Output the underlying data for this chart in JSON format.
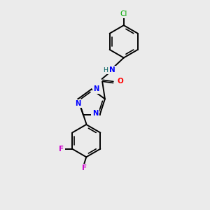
{
  "background_color": "#ebebeb",
  "bond_color": "#000000",
  "figsize": [
    3.0,
    3.0
  ],
  "dpi": 100,
  "atom_colors": {
    "N": "#0000ff",
    "O": "#ff0000",
    "Cl": "#00aa00",
    "F": "#cc00cc",
    "H": "#006060",
    "C": "#000000"
  },
  "lw": 1.4
}
